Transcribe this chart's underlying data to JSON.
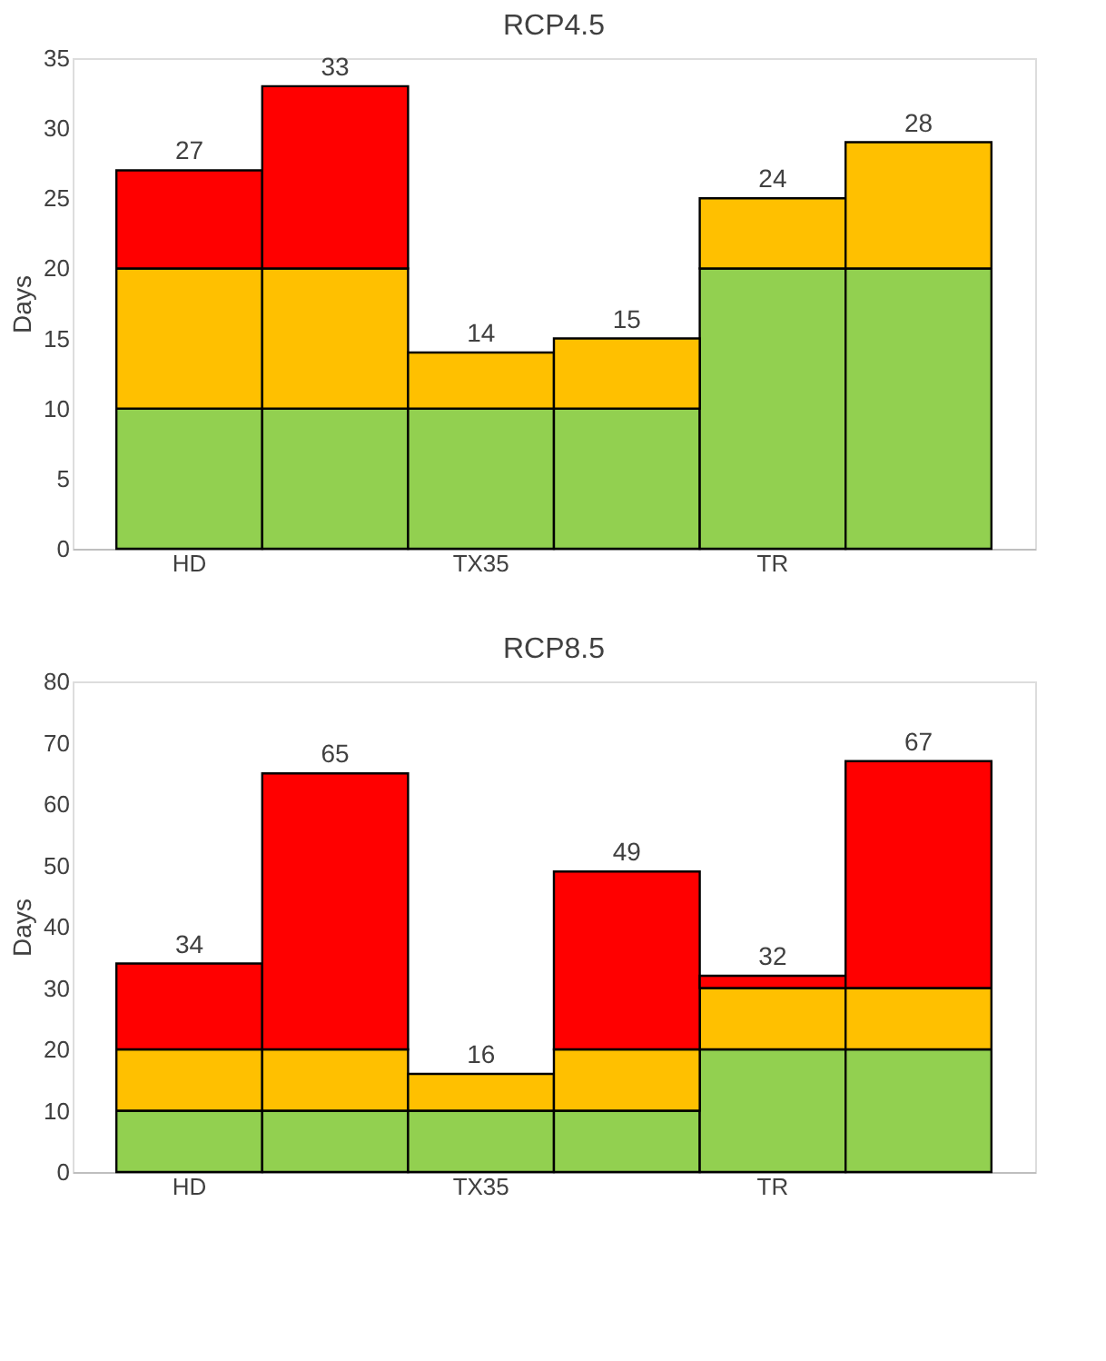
{
  "chart_data": [
    {
      "type": "bar",
      "title": "RCP4.5",
      "ylabel": "Days",
      "stacked": true,
      "categories": [
        "HD",
        null,
        "TX35",
        null,
        "TR",
        null
      ],
      "ylim": [
        0,
        35
      ],
      "yticks": [
        0,
        5,
        10,
        15,
        20,
        25,
        30,
        35
      ],
      "grid": false,
      "series": [
        {
          "color": "#92d050",
          "values": [
            10,
            10,
            10,
            10,
            20,
            20
          ]
        },
        {
          "color": "#ffc000",
          "values": [
            10,
            10,
            4,
            5,
            5,
            9
          ]
        },
        {
          "color": "#ff0000",
          "values": [
            7,
            13,
            null,
            null,
            null,
            null
          ]
        }
      ],
      "totals": [
        "27",
        "33",
        "14",
        "15",
        "24",
        "28"
      ]
    },
    {
      "type": "bar",
      "title": "RCP8.5",
      "ylabel": "Days",
      "stacked": true,
      "categories": [
        "HD",
        null,
        "TX35",
        null,
        "TR",
        null
      ],
      "ylim": [
        0,
        80
      ],
      "yticks": [
        0,
        10,
        20,
        30,
        40,
        50,
        60,
        70,
        80
      ],
      "grid": false,
      "series": [
        {
          "color": "#92d050",
          "values": [
            10,
            10,
            10,
            10,
            20,
            20
          ]
        },
        {
          "color": "#ffc000",
          "values": [
            10,
            10,
            6,
            10,
            10,
            10
          ]
        },
        {
          "color": "#ff0000",
          "values": [
            14,
            45,
            null,
            29,
            2,
            37
          ]
        }
      ],
      "totals": [
        "34",
        "65",
        "16",
        "49",
        "32",
        "67"
      ]
    }
  ]
}
